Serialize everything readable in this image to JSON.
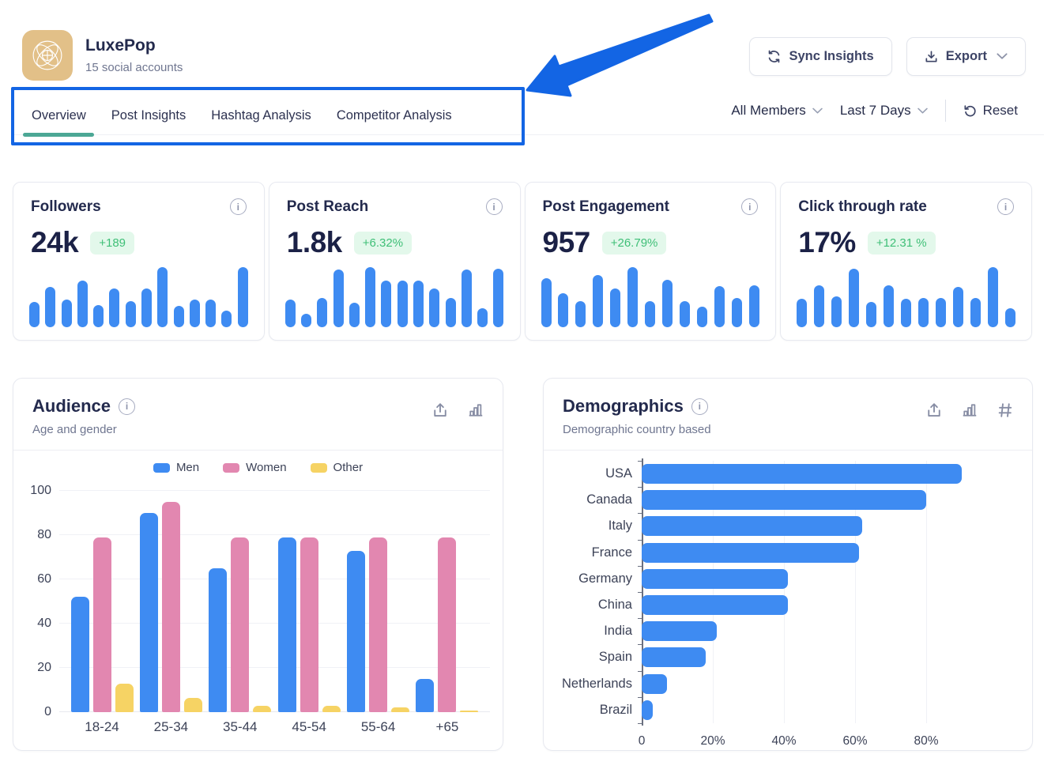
{
  "colors": {
    "accent_blue": "#3e8bf2",
    "annotation_blue": "#1365e4",
    "teal_underline": "#4ca795",
    "pink": "#e287b0",
    "yellow": "#f6d364",
    "green_text": "#3fbf77",
    "green_bg": "#e3f8eb",
    "navy_text": "#232a4d",
    "gray_text": "#6f7690",
    "logo_bg": "#e2c088"
  },
  "header": {
    "brand": {
      "name": "LuxePop",
      "subtitle": "15 social accounts",
      "logo_icon": "orbital-flower-icon"
    },
    "sync_button": {
      "label": "Sync Insights",
      "icon": "sync-icon"
    },
    "export_button": {
      "label": "Export",
      "icon": "download-icon"
    }
  },
  "tabs": [
    {
      "label": "Overview",
      "active": true
    },
    {
      "label": "Post Insights",
      "active": false
    },
    {
      "label": "Hashtag Analysis",
      "active": false
    },
    {
      "label": "Competitor Analysis",
      "active": false
    }
  ],
  "filters": {
    "members_label": "All Members",
    "period_label": "Last 7 Days",
    "reset_label": "Reset",
    "reset_icon": "undo-icon"
  },
  "stat_cards": [
    {
      "title": "Followers",
      "value": "24k",
      "delta": "+189",
      "spark": [
        42,
        67,
        46,
        78,
        37,
        65,
        44,
        64,
        100,
        35,
        46,
        46,
        28,
        100
      ]
    },
    {
      "title": "Post Reach",
      "value": "1.8k",
      "delta": "+6.32%",
      "spark": [
        46,
        22,
        49,
        96,
        41,
        100,
        77,
        77,
        77,
        65,
        49,
        96,
        32,
        97
      ]
    },
    {
      "title": "Post Engagement",
      "value": "957",
      "delta": "+26.79%",
      "spark": [
        81,
        57,
        43,
        87,
        65,
        100,
        43,
        79,
        43,
        34,
        69,
        49,
        70
      ]
    },
    {
      "title": "Click through rate",
      "value": "17%",
      "delta": "+12.31 %",
      "spark": [
        48,
        70,
        51,
        98,
        42,
        70,
        48,
        49,
        49,
        67,
        49,
        100,
        31
      ]
    }
  ],
  "audience_card": {
    "title": "Audience",
    "subtitle": "Age and gender",
    "icons": [
      "share-icon",
      "chart-icon"
    ]
  },
  "demographics_card": {
    "title": "Demographics",
    "subtitle": "Demographic country based",
    "icons": [
      "share-icon",
      "chart-icon",
      "hash-icon"
    ]
  },
  "chart_data": [
    {
      "id": "audience",
      "type": "bar",
      "title": "Audience",
      "subtitle": "Age and gender",
      "categories": [
        "18-24",
        "25-34",
        "35-44",
        "45-54",
        "55-64",
        "+65"
      ],
      "series": [
        {
          "name": "Men",
          "color": "#3e8bf2",
          "values": [
            52,
            90,
            65,
            79,
            73,
            15
          ]
        },
        {
          "name": "Women",
          "color": "#e287b0",
          "values": [
            79,
            95,
            79,
            79,
            79,
            79
          ]
        },
        {
          "name": "Other",
          "color": "#f6d364",
          "values": [
            13,
            6.5,
            3,
            3,
            2,
            0.8
          ]
        }
      ],
      "ylim": [
        0,
        100
      ],
      "yticks": [
        0,
        20,
        40,
        60,
        80,
        100
      ],
      "grid": true,
      "legend_position": "top"
    },
    {
      "id": "demographics",
      "type": "bar-horizontal",
      "title": "Demographics",
      "subtitle": "Demographic country based",
      "categories": [
        "USA",
        "Canada",
        "Italy",
        "France",
        "Germany",
        "China",
        "India",
        "Spain",
        "Netherlands",
        "Brazil"
      ],
      "values": [
        90,
        80,
        62,
        61,
        41,
        41,
        21,
        18,
        7,
        3
      ],
      "xlim": [
        0,
        100
      ],
      "xticks": [
        {
          "label": "0",
          "value": 0
        },
        {
          "label": "20%",
          "value": 20
        },
        {
          "label": "40%",
          "value": 40
        },
        {
          "label": "60%",
          "value": 60
        },
        {
          "label": "80%",
          "value": 80
        }
      ],
      "bar_color": "#3e8bf2",
      "grid": true
    }
  ]
}
